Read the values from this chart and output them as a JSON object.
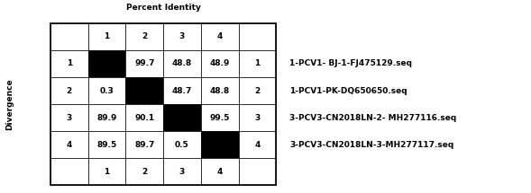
{
  "title": "Percent Identity",
  "ylabel": "Divergence",
  "row_labels": [
    "1",
    "2",
    "3",
    "4"
  ],
  "col_labels": [
    "1",
    "2",
    "3",
    "4"
  ],
  "cell_values": [
    [
      "",
      "99.7",
      "48.8",
      "48.9"
    ],
    [
      "0.3",
      "",
      "48.7",
      "48.8"
    ],
    [
      "89.9",
      "90.1",
      "",
      "99.5"
    ],
    [
      "89.5",
      "89.7",
      "0.5",
      ""
    ]
  ],
  "black_cell_color": "#000000",
  "white_cell_color": "#ffffff",
  "legend_labels": [
    "1-PCV1- BJ-1-FJ475129.seq",
    "1-PCV1-PK-DQ650650.seq",
    "3-PCV3-CN2018LN-2- MH277116.seq",
    "3-PCV3-CN2018LN-3-MH277117.seq"
  ],
  "fig_width": 5.89,
  "fig_height": 2.15,
  "dpi": 100
}
